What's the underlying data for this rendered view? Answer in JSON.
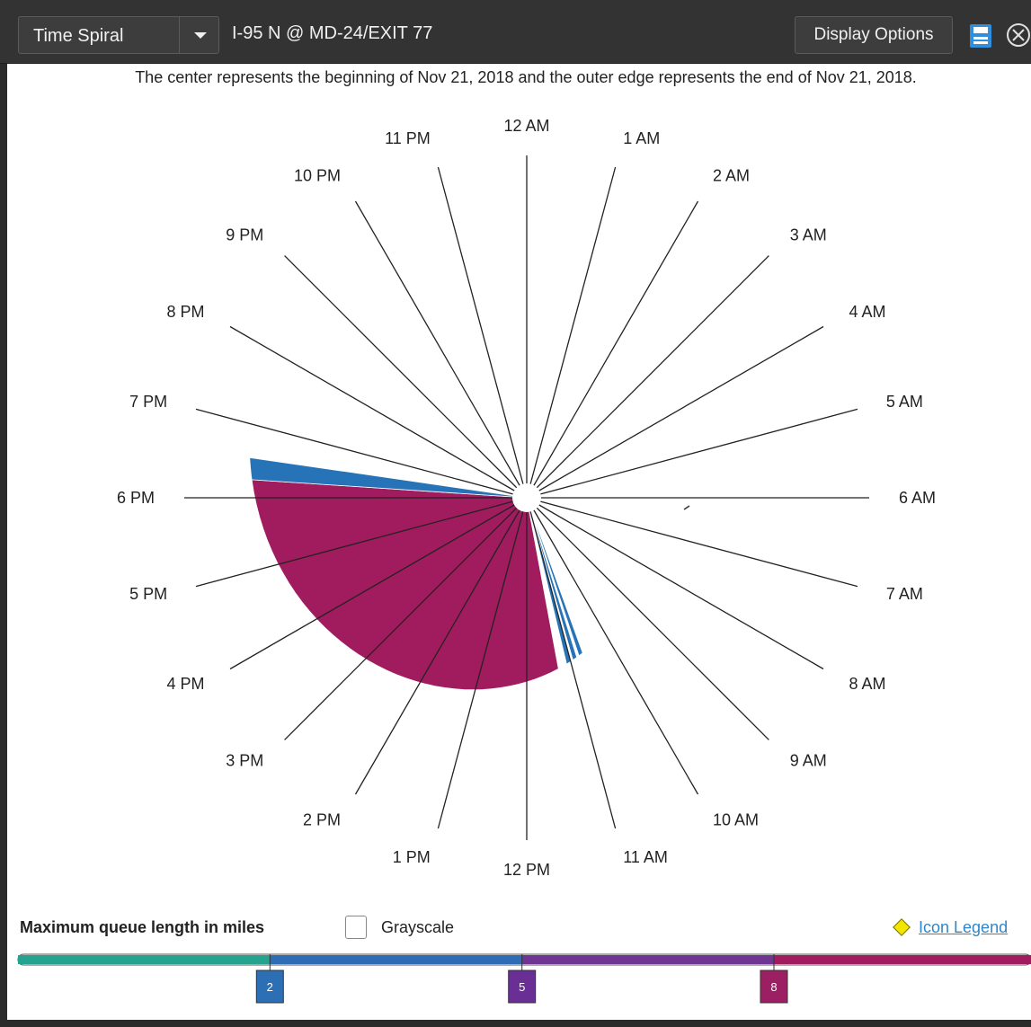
{
  "toolbar": {
    "view_selected": "Time Spiral",
    "location": "I-95 N @ MD-24/EXIT 77",
    "display_options_label": "Display Options"
  },
  "caption": "The center represents the beginning of Nov 21, 2018 and the outer edge represents the end of Nov 21, 2018.",
  "hour_labels": [
    "12 AM",
    "1 AM",
    "2 AM",
    "3 AM",
    "4 AM",
    "5 AM",
    "6 AM",
    "7 AM",
    "8 AM",
    "9 AM",
    "10 AM",
    "11 AM",
    "12 PM",
    "1 PM",
    "2 PM",
    "3 PM",
    "4 PM",
    "5 PM",
    "6 PM",
    "7 PM",
    "8 PM",
    "9 PM",
    "10 PM",
    "11 PM"
  ],
  "chart_data": {
    "type": "spiral",
    "period": "Nov 21, 2018",
    "center": "beginning of Nov 21, 2018",
    "outer_edge": "end of Nov 21, 2018",
    "queue_events": [
      {
        "start_hour": 10.68,
        "end_hour": 10.78,
        "queue_miles": 3,
        "color": "#2673b8"
      },
      {
        "start_hour": 10.84,
        "end_hour": 10.94,
        "queue_miles": 3,
        "color": "#2673b8"
      },
      {
        "start_hour": 11.0,
        "end_hour": 11.1,
        "queue_miles": 3,
        "color": "#2673b8"
      },
      {
        "start_hour": 11.3,
        "end_hour": 18.25,
        "queue_miles": 9,
        "color": "#a11c5e"
      },
      {
        "start_hour": 18.25,
        "end_hour": 18.55,
        "queue_miles": 3,
        "color": "#2673b8"
      }
    ]
  },
  "legend": {
    "title": "Maximum queue length in miles",
    "grayscale_label": "Grayscale",
    "icon_legend_label": "Icon Legend",
    "segments": [
      {
        "color": "#25a38f"
      },
      {
        "color": "#2e6db5"
      },
      {
        "color": "#6e3592"
      },
      {
        "color": "#a11c5e"
      }
    ],
    "markers": [
      {
        "value": "2",
        "color": "#2d6fb4"
      },
      {
        "value": "5",
        "color": "#6a2f95"
      },
      {
        "value": "8",
        "color": "#9c1f63"
      }
    ]
  },
  "colors": {
    "toolbar_bg": "#333333",
    "save_icon": "#2f8fdc"
  }
}
